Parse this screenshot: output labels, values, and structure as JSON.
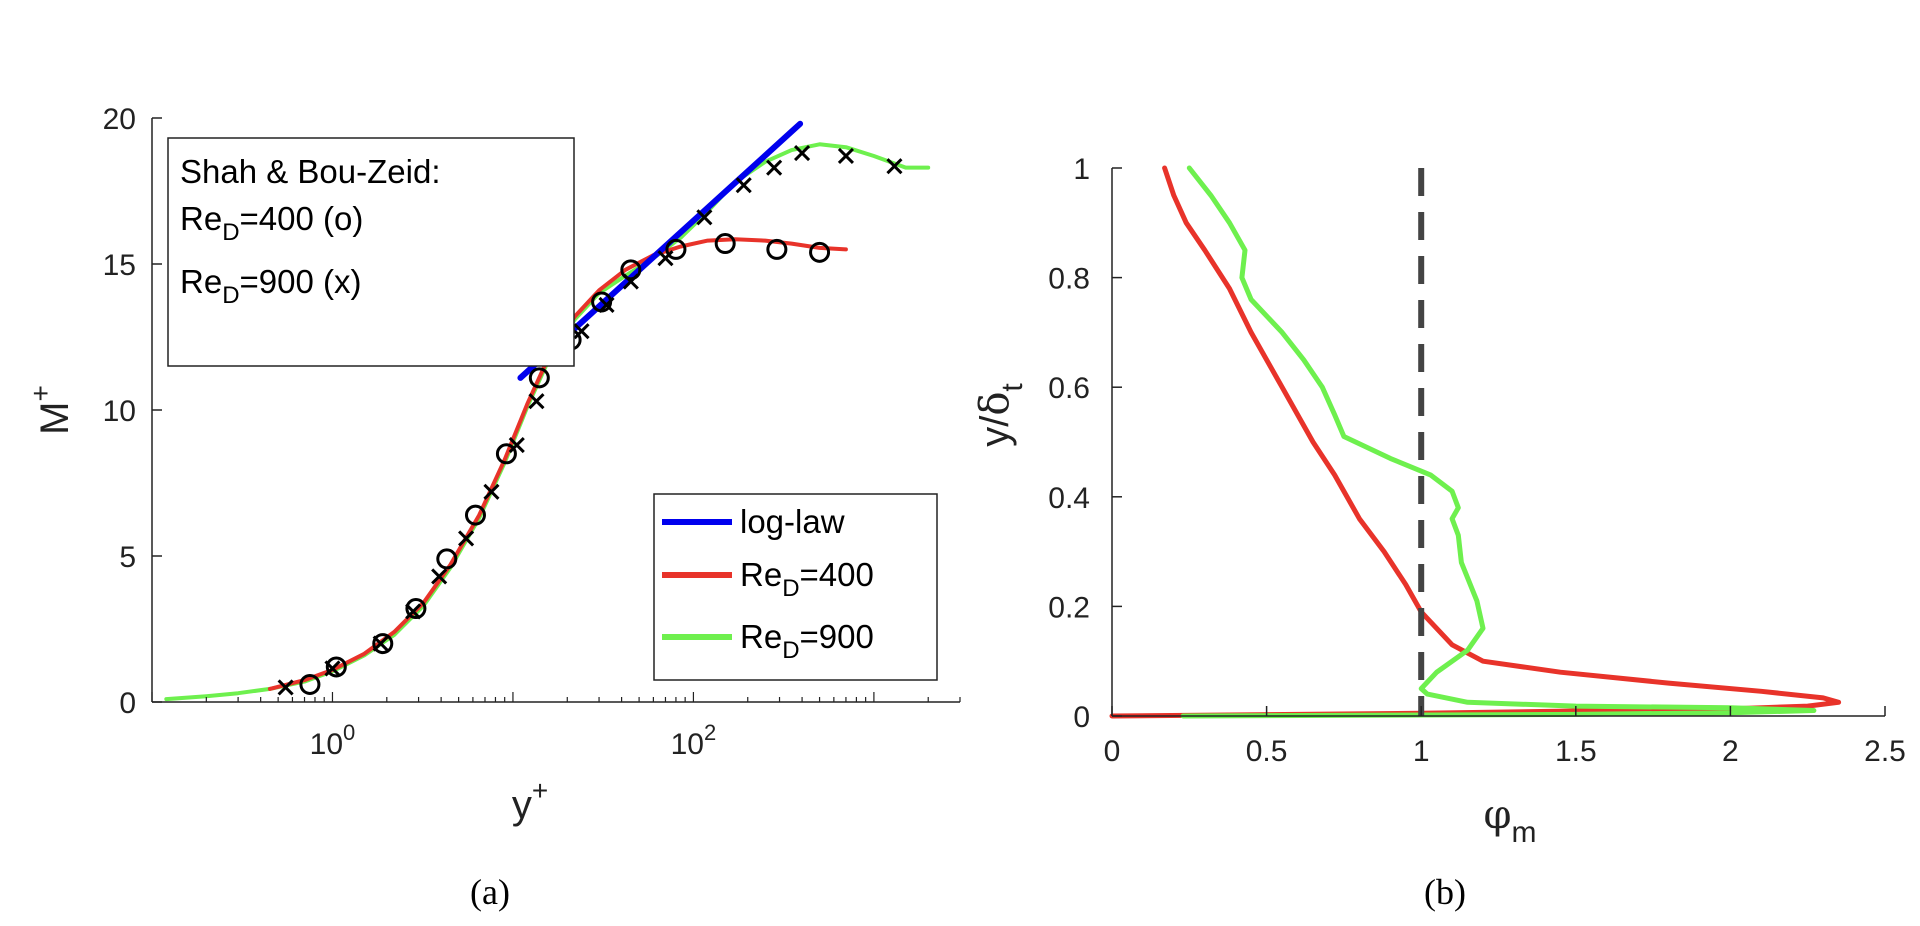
{
  "colors": {
    "loglaw": "#0000ee",
    "re400": "#e8332a",
    "re900": "#6ef04e",
    "dashed": "#444444",
    "axis": "#222222"
  },
  "chart_data": [
    {
      "type": "line",
      "title": "",
      "caption": "(a)",
      "xscale": "log",
      "xlabel_main": "y",
      "xlabel_sup": "+",
      "ylabel_main": "M",
      "ylabel_sup": "+",
      "xlim": [
        0.1,
        3000
      ],
      "ylim": [
        0,
        20
      ],
      "xticks": [
        {
          "value": 1,
          "base": "10",
          "exp": "0"
        },
        {
          "value": 100,
          "base": "10",
          "exp": "2"
        }
      ],
      "yticks": [
        "0",
        "5",
        "10",
        "15",
        "20"
      ],
      "annotation": {
        "line1": "Shah & Bou-Zeid:",
        "line2_pre": "Re",
        "line2_sub": "D",
        "line2_post": "=400 (o)",
        "line3_pre": "Re",
        "line3_sub": "D",
        "line3_post": "=900 (x)"
      },
      "legend": [
        {
          "label_pre": "log-law",
          "label_sub": "",
          "label_post": ""
        },
        {
          "label_pre": "Re",
          "label_sub": "D",
          "label_post": "=400"
        },
        {
          "label_pre": "Re",
          "label_sub": "D",
          "label_post": "=900"
        }
      ],
      "series": [
        {
          "name": "log-law",
          "x": [
            11,
            390
          ],
          "y": [
            11.1,
            19.8
          ]
        },
        {
          "name": "Re_D=400",
          "x": [
            0.45,
            0.7,
            1,
            1.5,
            2.2,
            3.2,
            4.5,
            6.5,
            9,
            12,
            16,
            22,
            30,
            42,
            60,
            85,
            120,
            170,
            250,
            350,
            500,
            700
          ],
          "y": [
            0.45,
            0.75,
            1.1,
            1.65,
            2.4,
            3.4,
            4.7,
            6.4,
            8.3,
            10.2,
            11.9,
            13.2,
            14.1,
            14.8,
            15.3,
            15.6,
            15.8,
            15.85,
            15.8,
            15.7,
            15.55,
            15.5
          ]
        },
        {
          "name": "Re_D=900",
          "x": [
            0.12,
            0.2,
            0.3,
            0.45,
            0.7,
            1,
            1.5,
            2.2,
            3.2,
            4.5,
            6.5,
            9,
            12,
            16,
            22,
            30,
            42,
            60,
            85,
            120,
            170,
            250,
            350,
            500,
            700,
            1000,
            1500,
            2000
          ],
          "y": [
            0.1,
            0.2,
            0.3,
            0.45,
            0.7,
            1.05,
            1.6,
            2.3,
            3.3,
            4.6,
            6.3,
            8.2,
            10.1,
            11.8,
            13.1,
            14.0,
            14.6,
            15.2,
            15.9,
            16.8,
            17.8,
            18.5,
            18.9,
            19.1,
            19.0,
            18.7,
            18.3,
            18.3
          ]
        },
        {
          "name": "Shah & Bou-Zeid Re_D=400 (o)",
          "marker": "o",
          "x": [
            0.75,
            1.05,
            1.9,
            2.9,
            4.3,
            6.2,
            9.2,
            14,
            21,
            31,
            45,
            80,
            150,
            290,
            500
          ],
          "y": [
            0.6,
            1.2,
            2.0,
            3.2,
            4.9,
            6.4,
            8.5,
            11.1,
            12.4,
            13.7,
            14.8,
            15.5,
            15.7,
            15.5,
            15.4
          ]
        },
        {
          "name": "Shah & Bou-Zeid Re_D=900 (x)",
          "marker": "x",
          "x": [
            0.55,
            1.0,
            1.85,
            2.8,
            3.9,
            5.5,
            7.6,
            10.5,
            13.5,
            18,
            24,
            33,
            45,
            70,
            115,
            190,
            280,
            400,
            700,
            1300
          ],
          "y": [
            0.5,
            1.15,
            2.0,
            3.1,
            4.3,
            5.6,
            7.2,
            8.8,
            10.3,
            11.8,
            12.7,
            13.6,
            14.4,
            15.2,
            16.6,
            17.7,
            18.3,
            18.8,
            18.7,
            18.35
          ]
        }
      ]
    },
    {
      "type": "line",
      "title": "",
      "caption": "(b)",
      "xlabel_main": "φ",
      "xlabel_sub": "m",
      "ylabel_main": "y/",
      "ylabel_greek": "δ",
      "ylabel_sub": "t",
      "xlim": [
        0,
        2.5
      ],
      "ylim": [
        0,
        1
      ],
      "xticks": [
        "0",
        "0.5",
        "1",
        "1.5",
        "2",
        "2.5"
      ],
      "yticks": [
        "0",
        "0.2",
        "0.4",
        "0.6",
        "0.8",
        "1"
      ],
      "reference_line": {
        "x": 1,
        "style": "dashed"
      },
      "series": [
        {
          "name": "Re_D=400",
          "x": [
            0.0,
            1.0,
            1.6,
            2.0,
            2.25,
            2.35,
            2.3,
            2.1,
            1.8,
            1.45,
            1.2,
            1.1,
            1.0,
            0.95,
            0.88,
            0.8,
            0.72,
            0.65,
            0.55,
            0.45,
            0.38,
            0.3,
            0.24,
            0.2,
            0.17
          ],
          "y": [
            0.0,
            0.005,
            0.01,
            0.013,
            0.018,
            0.025,
            0.033,
            0.045,
            0.06,
            0.08,
            0.1,
            0.13,
            0.19,
            0.24,
            0.3,
            0.36,
            0.44,
            0.5,
            0.6,
            0.7,
            0.78,
            0.85,
            0.9,
            0.95,
            1.0
          ]
        },
        {
          "name": "Re_D=900",
          "x": [
            0.23,
            1.5,
            2.0,
            2.27,
            2.0,
            1.5,
            1.15,
            1.02,
            1.0,
            1.05,
            1.15,
            1.2,
            1.18,
            1.13,
            1.12,
            1.1,
            1.12,
            1.1,
            1.03,
            0.9,
            0.75,
            0.72,
            0.68,
            0.62,
            0.55,
            0.45,
            0.42,
            0.43,
            0.38,
            0.32,
            0.25
          ],
          "y": [
            0.0,
            0.003,
            0.006,
            0.01,
            0.015,
            0.018,
            0.025,
            0.04,
            0.05,
            0.08,
            0.12,
            0.16,
            0.21,
            0.28,
            0.33,
            0.36,
            0.38,
            0.41,
            0.44,
            0.47,
            0.51,
            0.55,
            0.6,
            0.65,
            0.7,
            0.76,
            0.8,
            0.85,
            0.9,
            0.95,
            1.0
          ]
        }
      ]
    }
  ]
}
